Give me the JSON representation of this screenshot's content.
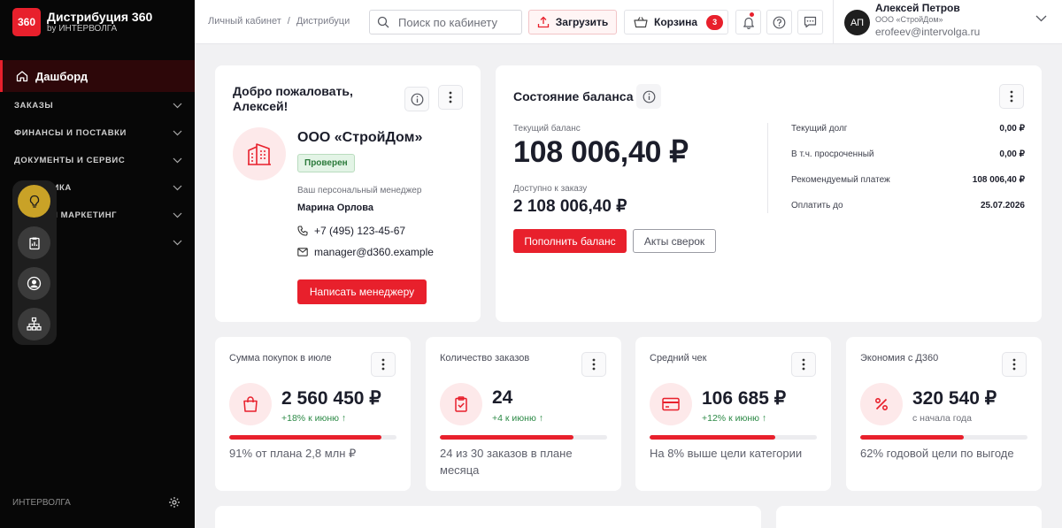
{
  "brand": {
    "logo": "360",
    "name": "Дистрибуция 360",
    "sub": "by ИНТЕРВОЛГА"
  },
  "sidebar": {
    "dashboard": "Дашборд",
    "sections": [
      "ЗАКАЗЫ",
      "ФИНАНСЫ И ПОСТАВКИ",
      "ДОКУМЕНТЫ И СЕРВИС",
      "АНАЛИТИКА",
      "ПРОМО И МАРКЕТИНГ",
      ""
    ],
    "footer": "ИНТЕРВОЛГА"
  },
  "header": {
    "breadcrumb": [
      "Личный кабинет",
      "Дистрибуци"
    ],
    "search_placeholder": "Поиск по кабинету",
    "upload": "Загрузить",
    "cart": "Корзина",
    "cart_count": "3"
  },
  "user": {
    "initials": "АП",
    "name": "Алексей Петров",
    "company": "ООО «СтройДом»",
    "email": "erofeev@intervolga.ru"
  },
  "welcome": {
    "title": "Добро пожаловать, Алексей!",
    "company": "ООО «СтройДом»",
    "status": "Проверен",
    "manager_caption": "Ваш персональный менеджер",
    "manager_name": "Марина Орлова",
    "phone": "+7 (495) 123-45-67",
    "email": "manager@d360.example",
    "button": "Написать менеджеру"
  },
  "balance": {
    "title": "Состояние баланса",
    "current_label": "Текущий баланс",
    "current_value": "108 006,40 ₽",
    "available_label": "Доступно к заказу",
    "available_value": "2 108 006,40 ₽",
    "topup": "Пополнить баланс",
    "acts": "Акты сверок",
    "rows": [
      {
        "label": "Текущий долг",
        "value": "0,00 ₽"
      },
      {
        "label": "В т.ч. просроченный",
        "value": "0,00 ₽"
      },
      {
        "label": "Рекомендуемый платеж",
        "value": "108 006,40 ₽"
      },
      {
        "label": "Оплатить до",
        "value": "25.07.2026"
      }
    ]
  },
  "kpis": [
    {
      "title": "Сумма покупок в июле",
      "icon": "shopping-bag-icon",
      "value": "2 560 450 ₽",
      "delta": "+18% к июню ↑",
      "progress": 0.91,
      "note": "91% от плана 2,8 млн ₽"
    },
    {
      "title": "Количество заказов",
      "icon": "clipboard-check-icon",
      "value": "24",
      "delta": "+4 к июню ↑",
      "progress": 0.8,
      "note": "24 из 30 заказов в плане месяца"
    },
    {
      "title": "Средний чек",
      "icon": "credit-card-icon",
      "value": "106 685 ₽",
      "delta": "+12% к июню ↑",
      "progress": 0.75,
      "note": "На 8% выше цели категории"
    },
    {
      "title": "Экономия с Д360",
      "icon": "percent-icon",
      "value": "320 540 ₽",
      "delta": "с начала года",
      "progress": 0.62,
      "note": "62% годовой цели по выгоде"
    }
  ],
  "colors": {
    "accent": "#e8202c",
    "positive": "#2d8a47",
    "sidebar": "#070707",
    "background": "#f1f1f3"
  }
}
